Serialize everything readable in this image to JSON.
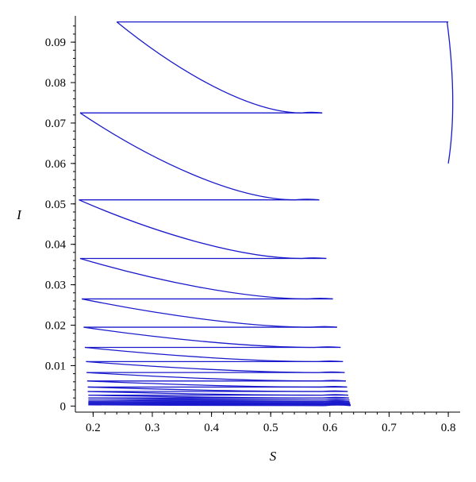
{
  "chart_data": {
    "type": "line",
    "title": "",
    "xlabel": "S",
    "ylabel": "I",
    "xlim": [
      0.17,
      0.82
    ],
    "ylim": [
      -0.0015,
      0.0965
    ],
    "x_ticks": [
      "0.2",
      "0.3",
      "0.4",
      "0.5",
      "0.6",
      "0.7",
      "0.8"
    ],
    "y_ticks": [
      "0",
      "0.01",
      "0.02",
      "0.03",
      "0.04",
      "0.05",
      "0.06",
      "0.07",
      "0.08",
      "0.09"
    ],
    "grid": false,
    "line_color": "#1a1acc",
    "initial_arc": {
      "start": [
        0.8,
        0.06
      ],
      "peak": [
        0.808,
        0.075
      ],
      "end": [
        0.798,
        0.095
      ]
    },
    "cycles": [
      {
        "i_top": 0.095,
        "s_left": 0.24,
        "s_right": 0.8,
        "s_tail": 0.587,
        "i_bottom": 0.0725
      },
      {
        "i_top": 0.0725,
        "s_left": 0.178,
        "s_right": 0.587,
        "s_tail": 0.582,
        "i_bottom": 0.051
      },
      {
        "i_top": 0.051,
        "s_left": 0.176,
        "s_right": 0.582,
        "s_tail": 0.594,
        "i_bottom": 0.0365
      },
      {
        "i_top": 0.0365,
        "s_left": 0.178,
        "s_right": 0.594,
        "s_tail": 0.605,
        "i_bottom": 0.0265
      },
      {
        "i_top": 0.0265,
        "s_left": 0.181,
        "s_right": 0.605,
        "s_tail": 0.612,
        "i_bottom": 0.0195
      },
      {
        "i_top": 0.0195,
        "s_left": 0.184,
        "s_right": 0.612,
        "s_tail": 0.618,
        "i_bottom": 0.0145
      },
      {
        "i_top": 0.0145,
        "s_left": 0.186,
        "s_right": 0.618,
        "s_tail": 0.622,
        "i_bottom": 0.011
      },
      {
        "i_top": 0.011,
        "s_left": 0.188,
        "s_right": 0.622,
        "s_tail": 0.625,
        "i_bottom": 0.0083
      },
      {
        "i_top": 0.0083,
        "s_left": 0.189,
        "s_right": 0.625,
        "s_tail": 0.627,
        "i_bottom": 0.0062
      },
      {
        "i_top": 0.0062,
        "s_left": 0.19,
        "s_right": 0.627,
        "s_tail": 0.629,
        "i_bottom": 0.0047
      },
      {
        "i_top": 0.0047,
        "s_left": 0.191,
        "s_right": 0.629,
        "s_tail": 0.63,
        "i_bottom": 0.0036
      },
      {
        "i_top": 0.0036,
        "s_left": 0.191,
        "s_right": 0.63,
        "s_tail": 0.631,
        "i_bottom": 0.0027
      },
      {
        "i_top": 0.0027,
        "s_left": 0.192,
        "s_right": 0.631,
        "s_tail": 0.632,
        "i_bottom": 0.002
      },
      {
        "i_top": 0.002,
        "s_left": 0.192,
        "s_right": 0.632,
        "s_tail": 0.633,
        "i_bottom": 0.0015
      },
      {
        "i_top": 0.0015,
        "s_left": 0.192,
        "s_right": 0.633,
        "s_tail": 0.633,
        "i_bottom": 0.0011
      },
      {
        "i_top": 0.0011,
        "s_left": 0.192,
        "s_right": 0.633,
        "s_tail": 0.634,
        "i_bottom": 0.0008
      },
      {
        "i_top": 0.0008,
        "s_left": 0.192,
        "s_right": 0.634,
        "s_tail": 0.634,
        "i_bottom": 0.0005
      },
      {
        "i_top": 0.0005,
        "s_left": 0.192,
        "s_right": 0.634,
        "s_tail": 0.635,
        "i_bottom": 0.0003
      },
      {
        "i_top": 0.0003,
        "s_left": 0.192,
        "s_right": 0.635,
        "s_tail": 0.635,
        "i_bottom": 0.0001
      }
    ]
  }
}
